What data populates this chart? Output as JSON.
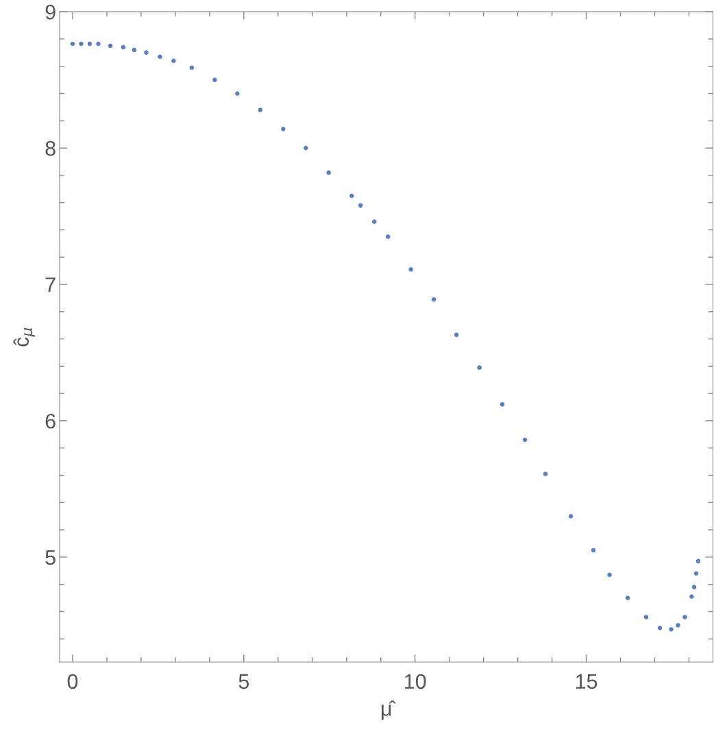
{
  "chart_data": {
    "type": "scatter",
    "xlabel": "μ̂",
    "ylabel": "ĉ$_{μ}$",
    "marker": "circle",
    "grid": false,
    "legend": false,
    "xlim": [
      -0.38,
      18.7
    ],
    "ylim": [
      4.23,
      9.0
    ],
    "xticks": [
      0,
      {
        "value": 1,
        "label": null
      },
      {
        "value": 2,
        "label": null
      },
      {
        "value": 3,
        "label": null
      },
      {
        "value": 4,
        "label": null
      },
      5,
      {
        "value": 6,
        "label": null
      },
      {
        "value": 7,
        "label": null
      },
      {
        "value": 8,
        "label": null
      },
      {
        "value": 9,
        "label": null
      },
      10,
      {
        "value": 11,
        "label": null
      },
      {
        "value": 12,
        "label": null
      },
      {
        "value": 13,
        "label": null
      },
      {
        "value": 14,
        "label": null
      },
      15,
      {
        "value": 16,
        "label": null
      },
      {
        "value": 17,
        "label": null
      },
      {
        "value": 18,
        "label": null
      }
    ],
    "yticks": [
      {
        "value": 4.4,
        "label": null
      },
      {
        "value": 4.6,
        "label": null
      },
      {
        "value": 4.8,
        "label": null
      },
      5,
      {
        "value": 5.2,
        "label": null
      },
      {
        "value": 5.4,
        "label": null
      },
      {
        "value": 5.6,
        "label": null
      },
      {
        "value": 5.8,
        "label": null
      },
      6,
      {
        "value": 6.2,
        "label": null
      },
      {
        "value": 6.4,
        "label": null
      },
      {
        "value": 6.6,
        "label": null
      },
      {
        "value": 6.8,
        "label": null
      },
      7,
      {
        "value": 7.2,
        "label": null
      },
      {
        "value": 7.4,
        "label": null
      },
      {
        "value": 7.6,
        "label": null
      },
      {
        "value": 7.8,
        "label": null
      },
      8,
      {
        "value": 8.2,
        "label": null
      },
      {
        "value": 8.4,
        "label": null
      },
      {
        "value": 8.6,
        "label": null
      },
      {
        "value": 8.8,
        "label": null
      },
      9
    ],
    "series": [
      {
        "color": "#5b7fbf",
        "x": [
          0,
          0.25,
          0.5,
          0.75,
          1.1,
          1.48,
          1.8,
          2.15,
          2.55,
          2.95,
          3.48,
          4.15,
          4.81,
          5.48,
          6.15,
          6.81,
          7.48,
          8.15,
          8.41,
          8.81,
          9.21,
          9.88,
          10.55,
          11.21,
          11.88,
          12.55,
          13.21,
          13.81,
          14.55,
          15.21,
          15.68,
          16.21,
          16.75,
          17.15,
          17.48,
          17.68,
          17.88,
          18.08,
          18.15,
          18.21,
          18.27
        ],
        "values": [
          8.765,
          8.765,
          8.765,
          8.765,
          8.75,
          8.74,
          8.72,
          8.7,
          8.67,
          8.64,
          8.59,
          8.5,
          8.4,
          8.28,
          8.14,
          8.0,
          7.82,
          7.65,
          7.58,
          7.46,
          7.35,
          7.11,
          6.89,
          6.63,
          6.39,
          6.12,
          5.86,
          5.61,
          5.3,
          5.05,
          4.87,
          4.7,
          4.56,
          4.48,
          4.47,
          4.5,
          4.56,
          4.71,
          4.78,
          4.88,
          4.97
        ]
      }
    ]
  }
}
